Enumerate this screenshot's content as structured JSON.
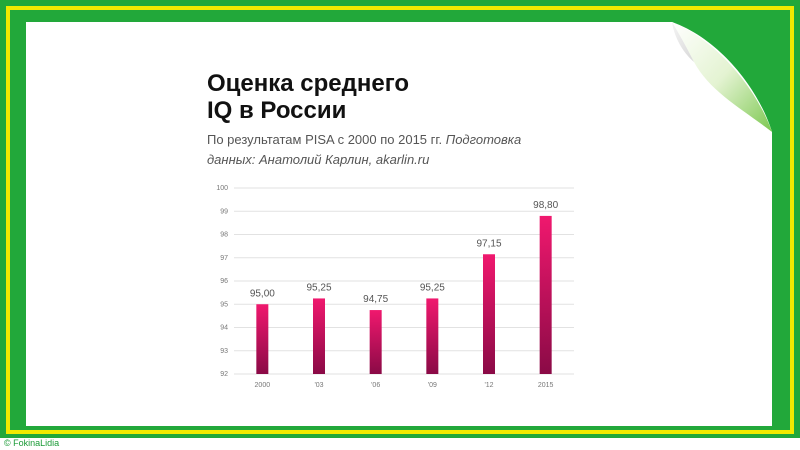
{
  "colors": {
    "frame_green": "#22a83a",
    "frame_yellow": "#f2ea00",
    "bar_top": "#f0186e",
    "bar_bottom": "#8a0a46"
  },
  "slide": {
    "title_line1": "Оценка среднего",
    "title_line2": "IQ в России",
    "subtitle_plain": "По результатам PISA с 2000 по 2015 гг. ",
    "subtitle_italic": "Подготовка данных: Анатолий Карлин, akarlin.ru"
  },
  "credit": "© FokinaLidia",
  "chart_data": {
    "type": "bar",
    "title": "Оценка среднего IQ в России",
    "subtitle": "По результатам PISA с 2000 по 2015 гг. Подготовка данных: Анатолий Карлин, akarlin.ru",
    "categories": [
      "2000",
      "'03",
      "'06",
      "'09",
      "'12",
      "2015"
    ],
    "values": [
      95.0,
      95.25,
      94.75,
      95.25,
      97.15,
      98.8
    ],
    "value_labels": [
      "95,00",
      "95,25",
      "94,75",
      "95,25",
      "97,15",
      "98,80"
    ],
    "ylim": [
      92,
      100
    ],
    "yticks": [
      92,
      93,
      94,
      95,
      96,
      97,
      98,
      99,
      100
    ],
    "grid": true,
    "xlabel": "",
    "ylabel": ""
  }
}
